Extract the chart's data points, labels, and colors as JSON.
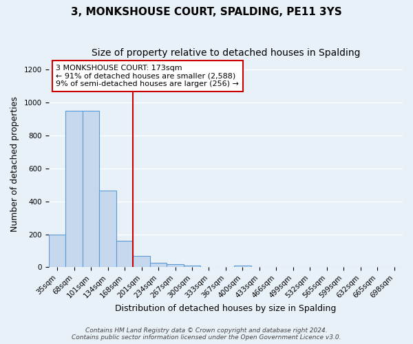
{
  "title": "3, MONKSHOUSE COURT, SPALDING, PE11 3YS",
  "subtitle": "Size of property relative to detached houses in Spalding",
  "xlabel": "Distribution of detached houses by size in Spalding",
  "ylabel": "Number of detached properties",
  "bin_labels": [
    "35sqm",
    "68sqm",
    "101sqm",
    "134sqm",
    "168sqm",
    "201sqm",
    "234sqm",
    "267sqm",
    "300sqm",
    "333sqm",
    "367sqm",
    "400sqm",
    "433sqm",
    "466sqm",
    "499sqm",
    "532sqm",
    "565sqm",
    "599sqm",
    "632sqm",
    "665sqm",
    "698sqm"
  ],
  "bar_values": [
    200,
    950,
    950,
    465,
    160,
    70,
    25,
    18,
    10,
    0,
    0,
    12,
    0,
    0,
    0,
    0,
    0,
    0,
    0,
    0,
    0
  ],
  "bar_color": "#c5d8ed",
  "bar_edge_color": "#5b9bd5",
  "property_line_x": 4.5,
  "property_line_color": "#cc0000",
  "annotation_title": "3 MONKSHOUSE COURT: 173sqm",
  "annotation_line1": "← 91% of detached houses are smaller (2,588)",
  "annotation_line2": "9% of semi-detached houses are larger (256) →",
  "annotation_box_color": "#ffffff",
  "annotation_box_edge_color": "#cc0000",
  "ylim": [
    0,
    1250
  ],
  "yticks": [
    0,
    200,
    400,
    600,
    800,
    1000,
    1200
  ],
  "footer_line1": "Contains HM Land Registry data © Crown copyright and database right 2024.",
  "footer_line2": "Contains public sector information licensed under the Open Government Licence v3.0.",
  "background_color": "#e8f0f8",
  "plot_bg_color": "#e8f0f8",
  "grid_color": "#ffffff",
  "title_fontsize": 11,
  "subtitle_fontsize": 10,
  "axis_label_fontsize": 9,
  "tick_fontsize": 7.5,
  "annotation_fontsize": 8,
  "footer_fontsize": 6.5
}
